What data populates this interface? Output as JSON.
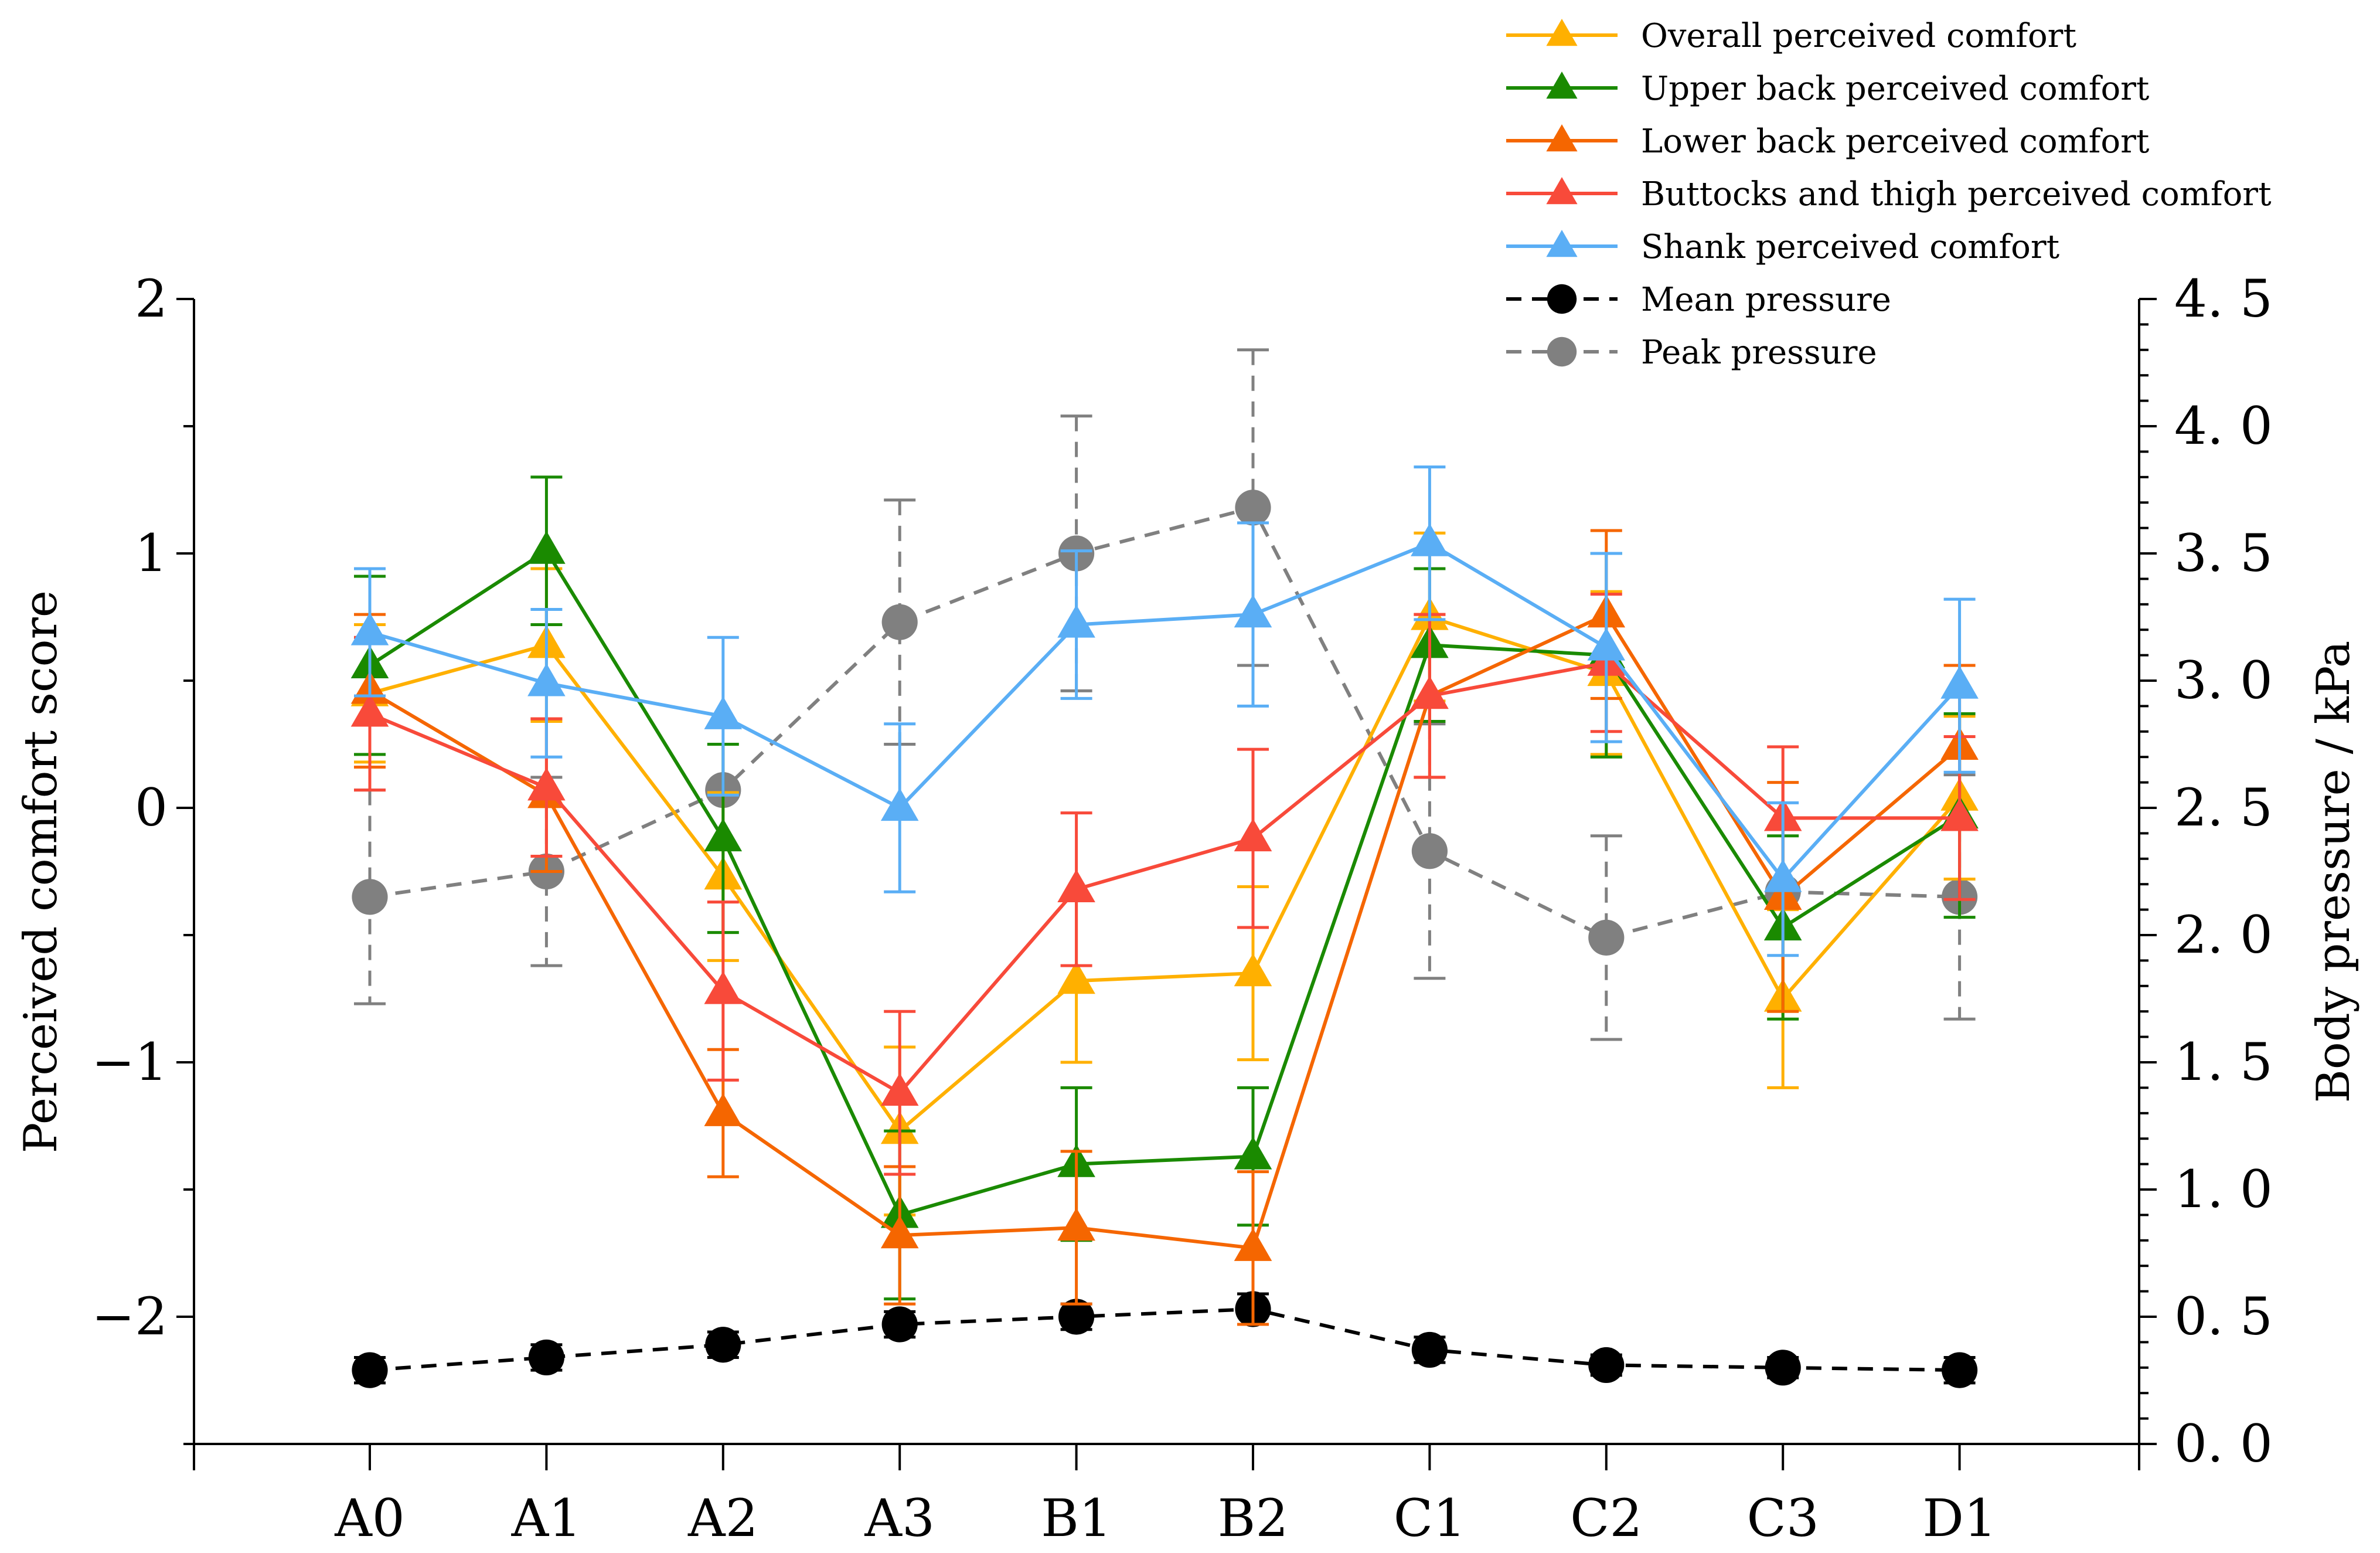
{
  "chart_data": {
    "type": "line",
    "categories": [
      "A0",
      "A1",
      "A2",
      "A3",
      "B1",
      "B2",
      "C1",
      "C2",
      "C3",
      "D1"
    ],
    "ylabel_left": "Perceived comfort score",
    "ylabel_right": "Body pressure / kPa",
    "ylim_left": [
      -2.5,
      2
    ],
    "ylim_right": [
      0,
      4.5
    ],
    "yticks_left": [
      {
        "value": 2,
        "label": "2"
      },
      {
        "value": 1,
        "label": "1"
      },
      {
        "value": 0,
        "label": "0"
      },
      {
        "value": -1,
        "label": "−1"
      },
      {
        "value": -2,
        "label": "−2"
      }
    ],
    "yticks_right": [
      {
        "value": 4.5,
        "label": "4. 5"
      },
      {
        "value": 4.0,
        "label": "4. 0"
      },
      {
        "value": 3.5,
        "label": "3. 5"
      },
      {
        "value": 3.0,
        "label": "3. 0"
      },
      {
        "value": 2.5,
        "label": "2. 5"
      },
      {
        "value": 2.0,
        "label": "2. 0"
      },
      {
        "value": 1.5,
        "label": "1. 5"
      },
      {
        "value": 1.0,
        "label": "1. 0"
      },
      {
        "value": 0.5,
        "label": "0. 5"
      },
      {
        "value": 0.0,
        "label": "0. 0"
      }
    ],
    "grid": false,
    "legend_position": "top-right",
    "series": [
      {
        "name": "Overall perceived comfort",
        "axis": "left",
        "color": "#FFB000",
        "marker": "triangle",
        "dashed": false,
        "values": [
          0.45,
          0.64,
          -0.27,
          -1.27,
          -0.68,
          -0.65,
          0.75,
          0.53,
          -0.75,
          0.04
        ],
        "errors": [
          0.27,
          0.3,
          0.33,
          0.33,
          0.32,
          0.34,
          0.33,
          0.32,
          0.35,
          0.32
        ]
      },
      {
        "name": "Upper back perceived comfort",
        "axis": "left",
        "color": "#1A8A00",
        "marker": "triangle",
        "dashed": false,
        "values": [
          0.56,
          1.01,
          -0.12,
          -1.6,
          -1.4,
          -1.37,
          0.64,
          0.6,
          -0.47,
          -0.03
        ],
        "errors": [
          0.35,
          0.29,
          0.37,
          0.33,
          0.3,
          0.27,
          0.3,
          0.4,
          0.36,
          0.4
        ]
      },
      {
        "name": "Lower back perceived comfort",
        "axis": "left",
        "color": "#F56600",
        "marker": "triangle",
        "dashed": false,
        "values": [
          0.46,
          0.05,
          -1.2,
          -1.68,
          -1.65,
          -1.73,
          0.44,
          0.76,
          -0.35,
          0.24
        ],
        "errors": [
          0.3,
          0.3,
          0.25,
          0.27,
          0.3,
          0.3,
          0.32,
          0.33,
          0.45,
          0.32
        ]
      },
      {
        "name": "Buttocks and thigh perceived comfort",
        "axis": "left",
        "color": "#F84A3A",
        "marker": "triangle",
        "dashed": false,
        "values": [
          0.37,
          0.08,
          -0.72,
          -1.12,
          -0.32,
          -0.12,
          0.44,
          0.57,
          -0.04,
          -0.04
        ],
        "errors": [
          0.3,
          0.27,
          0.35,
          0.32,
          0.3,
          0.35,
          0.32,
          0.27,
          0.28,
          0.32
        ]
      },
      {
        "name": "Shank perceived comfort",
        "axis": "left",
        "color": "#5AAEF5",
        "marker": "triangle",
        "dashed": false,
        "values": [
          0.69,
          0.49,
          0.36,
          0.0,
          0.72,
          0.76,
          1.04,
          0.63,
          -0.28,
          0.48
        ],
        "errors": [
          0.25,
          0.29,
          0.31,
          0.33,
          0.29,
          0.36,
          0.3,
          0.37,
          0.3,
          0.34
        ]
      },
      {
        "name": "Mean pressure",
        "axis": "right",
        "color": "#000000",
        "marker": "circle",
        "dashed": true,
        "values": [
          0.29,
          0.34,
          0.39,
          0.47,
          0.5,
          0.53,
          0.37,
          0.31,
          0.3,
          0.29
        ],
        "errors": [
          0.05,
          0.05,
          0.05,
          0.05,
          0.05,
          0.06,
          0.05,
          0.04,
          0.04,
          0.05
        ]
      },
      {
        "name": "Peak pressure",
        "axis": "right",
        "color": "#808080",
        "marker": "circle",
        "dashed": true,
        "values": [
          2.15,
          2.25,
          2.57,
          3.23,
          3.5,
          3.68,
          2.33,
          1.99,
          2.17,
          2.15
        ],
        "errors": [
          0.42,
          0.37,
          0.0,
          0.48,
          0.54,
          0.62,
          0.5,
          0.4,
          0.0,
          0.48
        ]
      }
    ]
  }
}
